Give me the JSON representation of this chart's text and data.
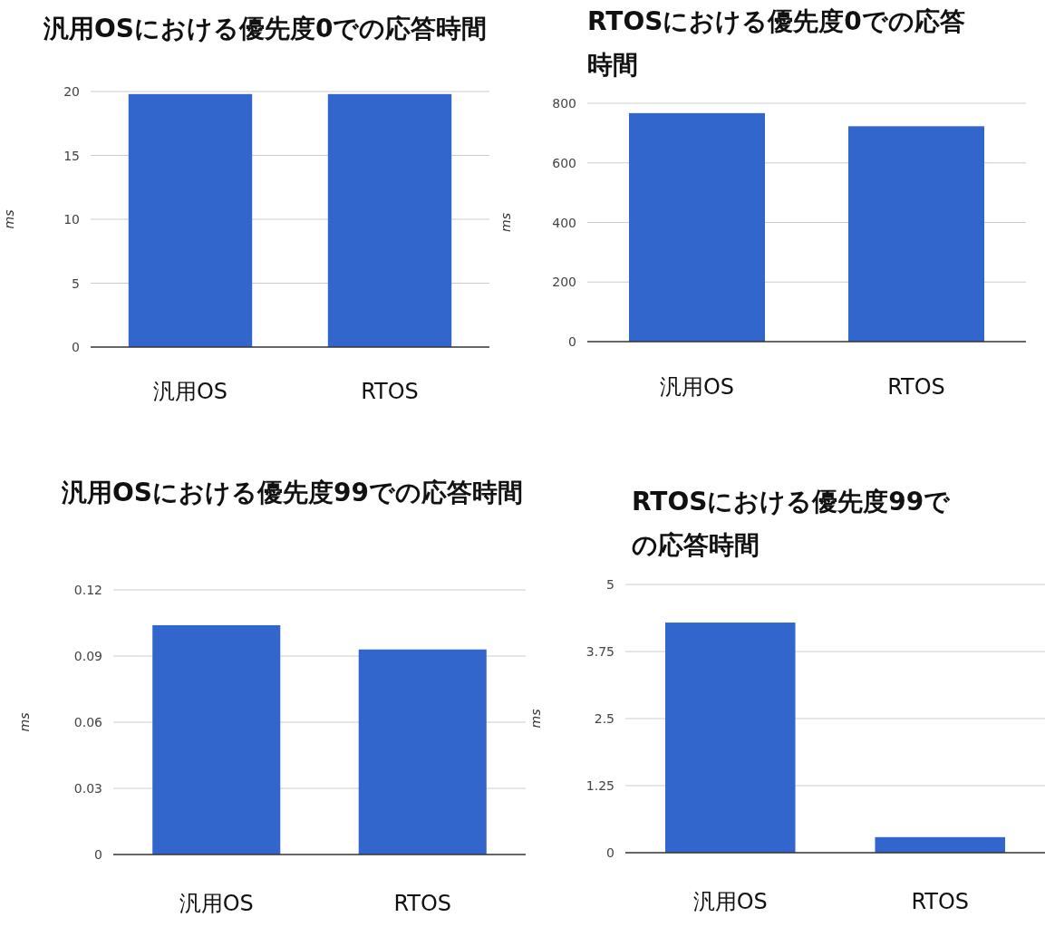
{
  "chart_data": [
    {
      "type": "bar",
      "title": "汎用OSにおける優先度0での応答時間",
      "ylabel": "ms",
      "categories": [
        "汎用OS",
        "RTOS"
      ],
      "values": [
        19.8,
        19.8
      ],
      "color": "#3366cc",
      "ylim": [
        0,
        20
      ],
      "yticks": [
        0,
        5,
        10,
        15,
        20
      ],
      "grid": "y"
    },
    {
      "type": "bar",
      "title": "RTOSにおける優先度0での応答時間",
      "ylabel": "ms",
      "categories": [
        "汎用OS",
        "RTOS"
      ],
      "values": [
        767,
        723
      ],
      "color": "#3366cc",
      "ylim": [
        0,
        800
      ],
      "yticks": [
        0,
        200,
        400,
        600,
        800
      ],
      "grid": "y"
    },
    {
      "type": "bar",
      "title": "汎用OSにおける優先度99での応答時間",
      "ylabel": "ms",
      "categories": [
        "汎用OS",
        "RTOS"
      ],
      "values": [
        0.104,
        0.093
      ],
      "color": "#3366cc",
      "ylim": [
        0,
        0.12
      ],
      "yticks": [
        0,
        0.03,
        0.06,
        0.09,
        0.12
      ],
      "grid": "y"
    },
    {
      "type": "bar",
      "title": "RTOSにおける優先度99での応答時間",
      "ylabel": "ms",
      "categories": [
        "汎用OS",
        "RTOS"
      ],
      "values": [
        4.29,
        0.29
      ],
      "color": "#3366cc",
      "ylim": [
        0,
        5
      ],
      "yticks": [
        0,
        1.25,
        2.5,
        3.75,
        5
      ],
      "grid": "y"
    }
  ]
}
